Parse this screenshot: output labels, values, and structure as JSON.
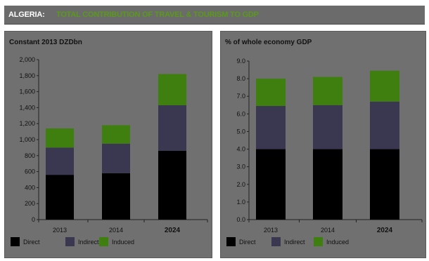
{
  "header": {
    "country": "ALGERIA:",
    "title": "TOTAL CONTRIBUTION OF TRAVEL & TOURISM TO GDP"
  },
  "colors": {
    "direct": "#000000",
    "indirect": "#3a3850",
    "induced": "#3f7f0f",
    "panel_bg": "#707070"
  },
  "chart_data": [
    {
      "type": "bar",
      "stacked": true,
      "title": "Constant 2013 DZDbn",
      "categories": [
        "2013",
        "2014",
        "2024"
      ],
      "category_bold": [
        false,
        false,
        true
      ],
      "ylim": [
        0,
        2000
      ],
      "yticks": [
        "0",
        "200",
        "400",
        "600",
        "800",
        "1,000",
        "1,200",
        "1,400",
        "1,600",
        "1,800",
        "2,000"
      ],
      "ytick_values": [
        0,
        200,
        400,
        600,
        800,
        1000,
        1200,
        1400,
        1600,
        1800,
        2000
      ],
      "grid": false,
      "legend_position": "bottom",
      "series": [
        {
          "name": "Direct",
          "values": [
            560,
            580,
            860
          ]
        },
        {
          "name": "Indirect",
          "values": [
            340,
            370,
            570
          ]
        },
        {
          "name": "Induced",
          "values": [
            240,
            230,
            390
          ]
        }
      ]
    },
    {
      "type": "bar",
      "stacked": true,
      "title": "% of whole economy GDP",
      "categories": [
        "2013",
        "2014",
        "2024"
      ],
      "category_bold": [
        false,
        false,
        true
      ],
      "ylim": [
        0,
        9
      ],
      "yticks": [
        "0.0",
        "1.0",
        "2.0",
        "3.0",
        "4.0",
        "5.0",
        "6.0",
        "7.0",
        "8.0",
        "9.0"
      ],
      "ytick_values": [
        0,
        1,
        2,
        3,
        4,
        5,
        6,
        7,
        8,
        9
      ],
      "grid": false,
      "legend_position": "bottom",
      "series": [
        {
          "name": "Direct",
          "values": [
            4.0,
            4.0,
            4.0
          ]
        },
        {
          "name": "Indirect",
          "values": [
            2.45,
            2.5,
            2.7
          ]
        },
        {
          "name": "Induced",
          "values": [
            1.55,
            1.6,
            1.75
          ]
        }
      ]
    }
  ]
}
